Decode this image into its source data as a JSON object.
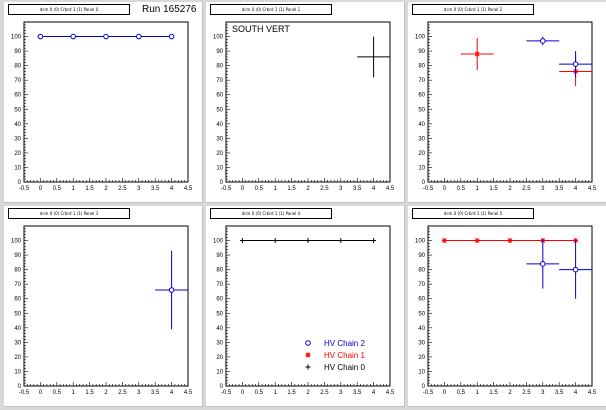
{
  "run_label": "Run 165276",
  "pad_text": "SOUTH VERT",
  "colors": {
    "chain0": "#000000",
    "chain1": "#ff0000",
    "chain2": "#0000cc",
    "axis": "#000000"
  },
  "legend": [
    {
      "label": "HV Chain 2",
      "series": "chain2",
      "marker": "open-circle"
    },
    {
      "label": "HV Chain 1",
      "series": "chain1",
      "marker": "star"
    },
    {
      "label": "HV Chain 0",
      "series": "chain0",
      "marker": "plus"
    }
  ],
  "chart_data": [
    {
      "type": "scatter",
      "title": "dcm 0 (0) Crbrd 1 (1) Panel 0",
      "xlim": [
        -0.5,
        4.5
      ],
      "ylim": [
        0,
        110
      ],
      "xticks": [
        "-0.5",
        "0",
        "0.5",
        "1",
        "1.5",
        "2",
        "2.5",
        "3",
        "3.5",
        "4",
        "4.5"
      ],
      "yticks": [
        "0",
        "10",
        "20",
        "30",
        "40",
        "50",
        "60",
        "70",
        "80",
        "90",
        "100"
      ],
      "series": [
        {
          "color": "chain2",
          "marker": "open-circle",
          "line": true,
          "points": [
            {
              "x": 0,
              "y": 100,
              "xerr": 0,
              "yerr": 0
            },
            {
              "x": 1,
              "y": 100,
              "xerr": 0,
              "yerr": 0
            },
            {
              "x": 2,
              "y": 100,
              "xerr": 0,
              "yerr": 0
            },
            {
              "x": 3,
              "y": 100,
              "xerr": 0,
              "yerr": 0
            },
            {
              "x": 4,
              "y": 100,
              "xerr": 0,
              "yerr": 0
            }
          ]
        }
      ]
    },
    {
      "type": "scatter",
      "title": "dcm 0 (0) Crbrd 1 (1) Panel 1",
      "xlim": [
        -0.5,
        4.5
      ],
      "ylim": [
        0,
        110
      ],
      "xticks": [
        "-0.5",
        "0",
        "0.5",
        "1",
        "1.5",
        "2",
        "2.5",
        "3",
        "3.5",
        "4",
        "4.5"
      ],
      "yticks": [
        "0",
        "10",
        "20",
        "30",
        "40",
        "50",
        "60",
        "70",
        "80",
        "90",
        "100"
      ],
      "series": [
        {
          "color": "chain0",
          "marker": "none",
          "line": false,
          "points": [
            {
              "x": 4,
              "y": 86,
              "xerr": 0.5,
              "yerr": 14
            }
          ]
        }
      ]
    },
    {
      "type": "scatter",
      "title": "dcm 0 (0) Crbrd 1 (1) Panel 2",
      "xlim": [
        -0.5,
        4.5
      ],
      "ylim": [
        0,
        110
      ],
      "xticks": [
        "-0.5",
        "0",
        "0.5",
        "1",
        "1.5",
        "2",
        "2.5",
        "3",
        "3.5",
        "4",
        "4.5"
      ],
      "yticks": [
        "0",
        "10",
        "20",
        "30",
        "40",
        "50",
        "60",
        "70",
        "80",
        "90",
        "100"
      ],
      "series": [
        {
          "color": "chain1",
          "marker": "star",
          "line": false,
          "points": [
            {
              "x": 1,
              "y": 88,
              "xerr": 0.5,
              "yerr": 11
            },
            {
              "x": 4,
              "y": 76,
              "xerr": 0.5,
              "yerr": 10
            }
          ]
        },
        {
          "color": "chain2",
          "marker": "open-circle",
          "line": false,
          "points": [
            {
              "x": 3,
              "y": 97,
              "xerr": 0.5,
              "yerr": 3
            },
            {
              "x": 4,
              "y": 81,
              "xerr": 0.5,
              "yerr": 9
            }
          ]
        }
      ]
    },
    {
      "type": "scatter",
      "title": "dcm 0 (0) Crbrd 1 (1) Panel 3",
      "xlim": [
        -0.5,
        4.5
      ],
      "ylim": [
        0,
        110
      ],
      "xticks": [
        "-0.5",
        "0",
        "0.5",
        "1",
        "1.5",
        "2",
        "2.5",
        "3",
        "3.5",
        "4",
        "4.5"
      ],
      "yticks": [
        "0",
        "10",
        "20",
        "30",
        "40",
        "50",
        "60",
        "70",
        "80",
        "90",
        "100"
      ],
      "series": [
        {
          "color": "chain2",
          "marker": "open-circle",
          "line": false,
          "points": [
            {
              "x": 4,
              "y": 66,
              "xerr": 0.5,
              "yerr": 27
            }
          ]
        }
      ]
    },
    {
      "type": "scatter",
      "title": "dcm 0 (0) Crbrd 1 (1) Panel 4",
      "xlim": [
        -0.5,
        4.5
      ],
      "ylim": [
        0,
        110
      ],
      "xticks": [
        "-0.5",
        "0",
        "0.5",
        "1",
        "1.5",
        "2",
        "2.5",
        "3",
        "3.5",
        "4",
        "4.5"
      ],
      "yticks": [
        "0",
        "10",
        "20",
        "30",
        "40",
        "50",
        "60",
        "70",
        "80",
        "90",
        "100"
      ],
      "series": [
        {
          "color": "chain0",
          "marker": "plus",
          "line": true,
          "points": [
            {
              "x": 0,
              "y": 100,
              "xerr": 0,
              "yerr": 0
            },
            {
              "x": 1,
              "y": 100,
              "xerr": 0,
              "yerr": 0
            },
            {
              "x": 2,
              "y": 100,
              "xerr": 0,
              "yerr": 0
            },
            {
              "x": 3,
              "y": 100,
              "xerr": 0,
              "yerr": 0
            },
            {
              "x": 4,
              "y": 100,
              "xerr": 0,
              "yerr": 0
            }
          ]
        }
      ]
    },
    {
      "type": "scatter",
      "title": "dcm 0 (0) Crbrd 1 (1) Panel 5",
      "xlim": [
        -0.5,
        4.5
      ],
      "ylim": [
        0,
        110
      ],
      "xticks": [
        "-0.5",
        "0",
        "0.5",
        "1",
        "1.5",
        "2",
        "2.5",
        "3",
        "3.5",
        "4",
        "4.5"
      ],
      "yticks": [
        "0",
        "10",
        "20",
        "30",
        "40",
        "50",
        "60",
        "70",
        "80",
        "90",
        "100"
      ],
      "series": [
        {
          "color": "chain1",
          "marker": "star",
          "line": true,
          "points": [
            {
              "x": 0,
              "y": 100,
              "xerr": 0,
              "yerr": 0
            },
            {
              "x": 1,
              "y": 100,
              "xerr": 0,
              "yerr": 0
            },
            {
              "x": 2,
              "y": 100,
              "xerr": 0,
              "yerr": 0
            },
            {
              "x": 3,
              "y": 100,
              "xerr": 0,
              "yerr": 0
            },
            {
              "x": 4,
              "y": 100,
              "xerr": 0,
              "yerr": 0
            }
          ]
        },
        {
          "color": "chain2",
          "marker": "open-circle",
          "line": false,
          "points": [
            {
              "x": 3,
              "y": 84,
              "xerr": 0.5,
              "yerr": 17
            },
            {
              "x": 4,
              "y": 80,
              "xerr": 0.5,
              "yerr": 20
            }
          ]
        }
      ]
    }
  ]
}
